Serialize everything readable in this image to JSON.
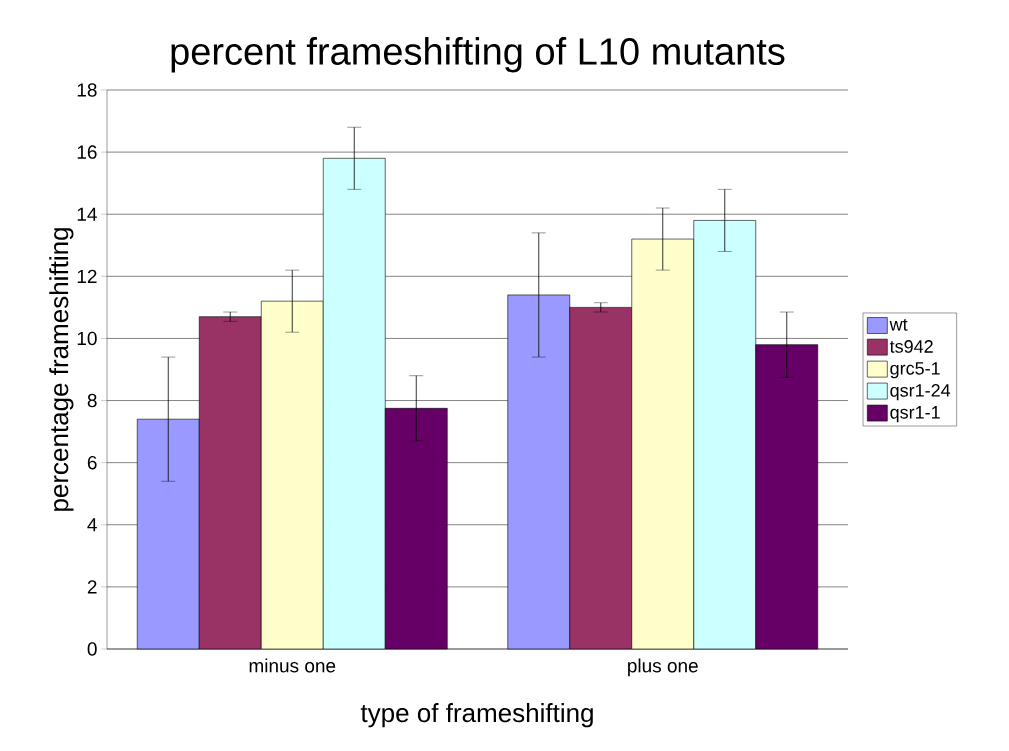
{
  "chart_data": {
    "type": "bar",
    "title": "percent frameshifting of L10 mutants",
    "xlabel": "type of frameshifting",
    "ylabel": "percentage frameshifting",
    "categories": [
      "minus one",
      "plus one"
    ],
    "series": [
      {
        "name": "wt",
        "color": "#9999ff",
        "values": [
          7.4,
          11.4
        ],
        "errors": [
          2.0,
          2.0
        ]
      },
      {
        "name": "ts942",
        "color": "#993366",
        "values": [
          10.7,
          11.0
        ],
        "errors": [
          0.15,
          0.15
        ]
      },
      {
        "name": "grc5-1",
        "color": "#ffffcc",
        "values": [
          11.2,
          13.2
        ],
        "errors": [
          1.0,
          1.0
        ]
      },
      {
        "name": "qsr1-24",
        "color": "#ccffff",
        "values": [
          15.8,
          13.8
        ],
        "errors": [
          1.0,
          1.0
        ]
      },
      {
        "name": "qsr1-1",
        "color": "#660066",
        "values": [
          7.75,
          9.8
        ],
        "errors": [
          1.05,
          1.05
        ]
      }
    ],
    "ylim": [
      0,
      18
    ],
    "yticks": [
      0,
      2,
      4,
      6,
      8,
      10,
      12,
      14,
      16,
      18
    ],
    "grid": "y",
    "legend": "right"
  }
}
